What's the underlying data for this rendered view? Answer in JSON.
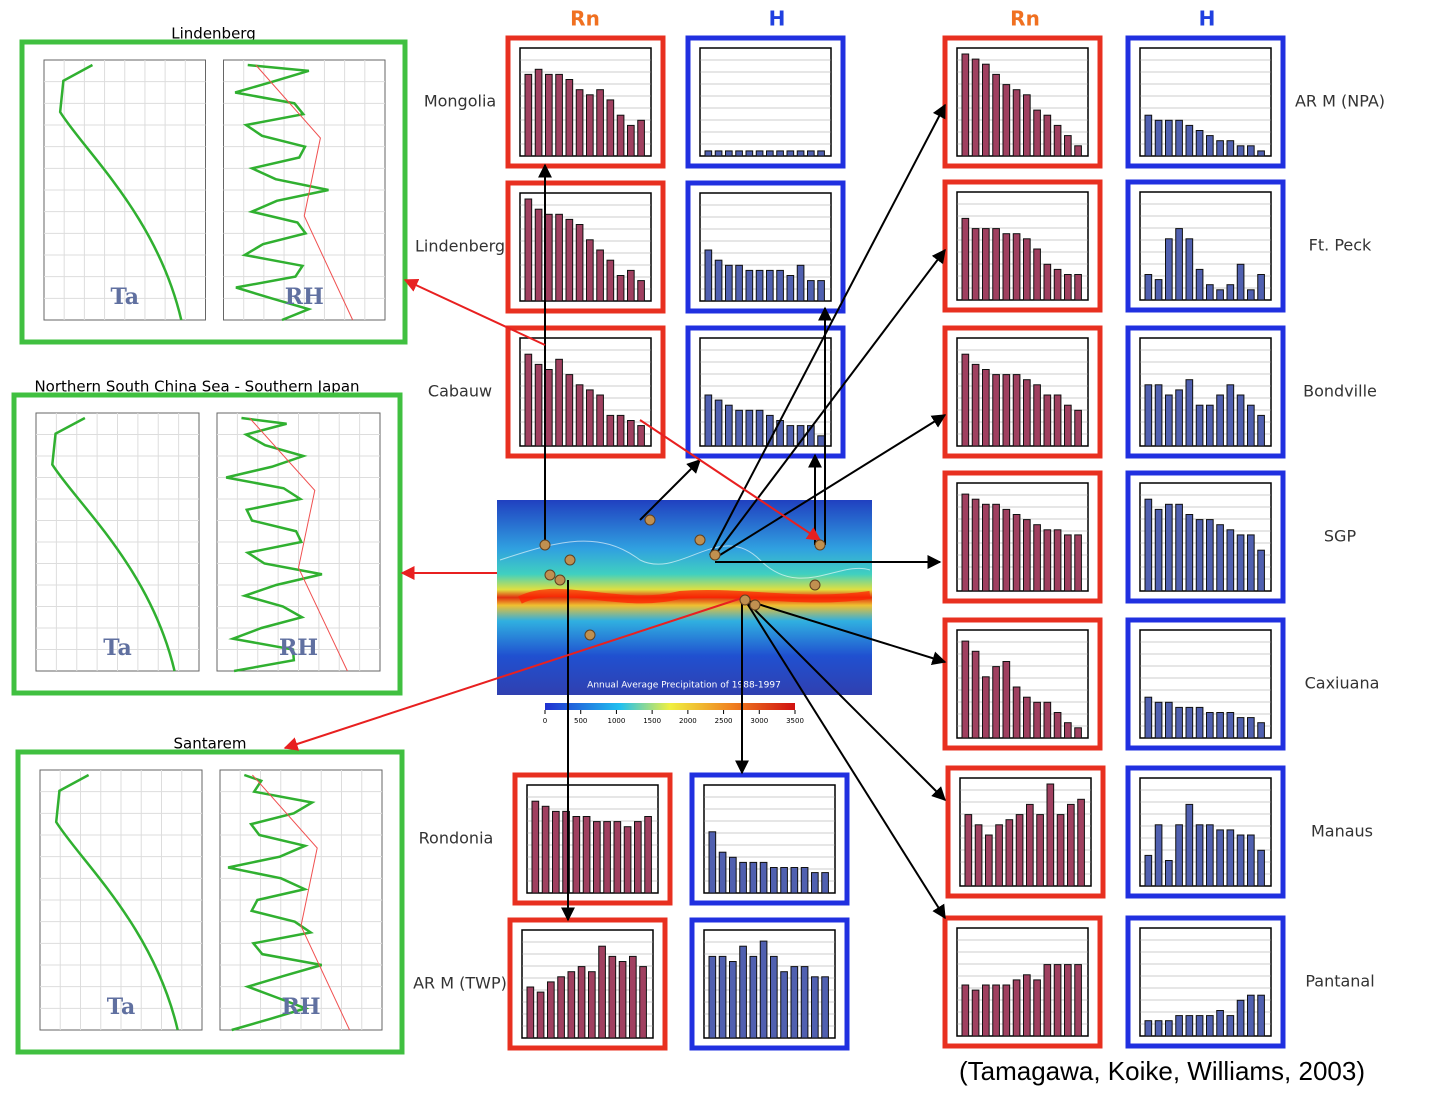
{
  "headers": {
    "rn": "Rn",
    "h": "H"
  },
  "left_panels": [
    {
      "title": "Lindenberg",
      "ta": "Ta",
      "rh": "RH"
    },
    {
      "title": "Northern South China Sea - Southern Japan",
      "ta": "Ta",
      "rh": "RH"
    },
    {
      "title": "Santarem",
      "ta": "Ta",
      "rh": "RH"
    }
  ],
  "ylim": [
    0,
    10
  ],
  "stations": [
    {
      "label": "Mongolia",
      "rn": [
        8,
        8.5,
        8,
        8,
        7.5,
        6.5,
        6,
        6.5,
        5.5,
        4,
        3,
        3.5
      ],
      "h": [
        0.5,
        0.5,
        0.5,
        0.5,
        0.5,
        0.5,
        0.5,
        0.5,
        0.5,
        0.5,
        0.5,
        0.5
      ]
    },
    {
      "label": "Lindenberg",
      "rn": [
        10,
        9,
        8.5,
        8.5,
        8,
        7.5,
        6,
        5,
        4,
        2.5,
        3,
        2
      ],
      "h": [
        5,
        4,
        3.5,
        3.5,
        3,
        3,
        3,
        3,
        2.5,
        3.5,
        2,
        2
      ]
    },
    {
      "label": "Cabauw",
      "rn": [
        9,
        8,
        7.5,
        8.5,
        7,
        6,
        5.5,
        5,
        3,
        3,
        2.5,
        2
      ],
      "h": [
        5,
        4.5,
        4,
        3.5,
        3.5,
        3.5,
        3,
        2.5,
        2,
        2,
        2,
        1
      ]
    },
    {
      "label": "Rondonia",
      "rn": [
        9,
        8.5,
        8,
        8,
        7.5,
        7.5,
        7,
        7,
        7,
        6.5,
        7,
        7.5
      ],
      "h": [
        6,
        4,
        3.5,
        3,
        3,
        3,
        2.5,
        2.5,
        2.5,
        2.5,
        2,
        2
      ]
    },
    {
      "label": "AR M (TWP)",
      "rn": [
        5,
        4.5,
        5.5,
        6,
        6.5,
        7,
        6.5,
        9,
        8,
        7.5,
        8,
        7
      ],
      "h": [
        8,
        8,
        7.5,
        9,
        8,
        9.5,
        8,
        6.5,
        7,
        7,
        6,
        6
      ]
    },
    {
      "label": "AR M (NPA)",
      "rn": [
        10,
        9.5,
        9,
        8,
        7,
        6.5,
        6,
        4.5,
        4,
        3,
        2,
        1
      ],
      "h": [
        4,
        3.5,
        3.5,
        3.5,
        3,
        2.5,
        2,
        1.5,
        1.5,
        1,
        1,
        0.5
      ]
    },
    {
      "label": "Ft. Peck",
      "rn": [
        8,
        7,
        7,
        7,
        6.5,
        6.5,
        6,
        5,
        3.5,
        3,
        2.5,
        2.5
      ],
      "h": [
        2.5,
        2,
        6,
        7,
        6,
        3,
        1.5,
        1,
        1.5,
        3.5,
        1,
        2.5
      ]
    },
    {
      "label": "Bondville",
      "rn": [
        9,
        8,
        7.5,
        7,
        7,
        7,
        6.5,
        6,
        5,
        5,
        4,
        3.5
      ],
      "h": [
        6,
        6,
        5,
        5.5,
        6.5,
        4,
        4,
        5,
        6,
        5,
        4,
        3
      ]
    },
    {
      "label": "SGP",
      "rn": [
        9.5,
        9,
        8.5,
        8.5,
        8,
        7.5,
        7,
        6.5,
        6,
        6,
        5.5,
        5.5
      ],
      "h": [
        9,
        8,
        8.5,
        8.5,
        7.5,
        7,
        7,
        6.5,
        6,
        5.5,
        5.5,
        4
      ]
    },
    {
      "label": "Caxiuana",
      "rn": [
        9.5,
        8.5,
        6,
        7,
        7.5,
        5,
        4,
        3.5,
        3.5,
        2.5,
        1.5,
        1
      ],
      "h": [
        4,
        3.5,
        3.5,
        3,
        3,
        3,
        2.5,
        2.5,
        2.5,
        2,
        2,
        1.5
      ]
    },
    {
      "label": "Manaus",
      "rn": [
        7,
        6,
        5,
        6,
        6.5,
        7,
        8,
        7,
        10,
        7,
        8,
        8.5
      ],
      "h": [
        3,
        6,
        2.5,
        6,
        8,
        6,
        6,
        5.5,
        5.5,
        5,
        5,
        3.5
      ]
    },
    {
      "label": "Pantanal",
      "rn": [
        5,
        4.5,
        5,
        5,
        5,
        5.5,
        6,
        5.5,
        7,
        7,
        7,
        7
      ],
      "h": [
        1.5,
        1.5,
        1.5,
        2,
        2,
        2,
        2,
        2.5,
        2,
        3.5,
        4,
        4
      ]
    }
  ],
  "map": {
    "title": "Annual Average Precipitation of 1988-1997",
    "colorbar_ticks": [
      0,
      500,
      1000,
      1500,
      2000,
      2500,
      3000,
      3500
    ]
  },
  "citation": "(Tamagawa, Koike, Williams, 2003)"
}
